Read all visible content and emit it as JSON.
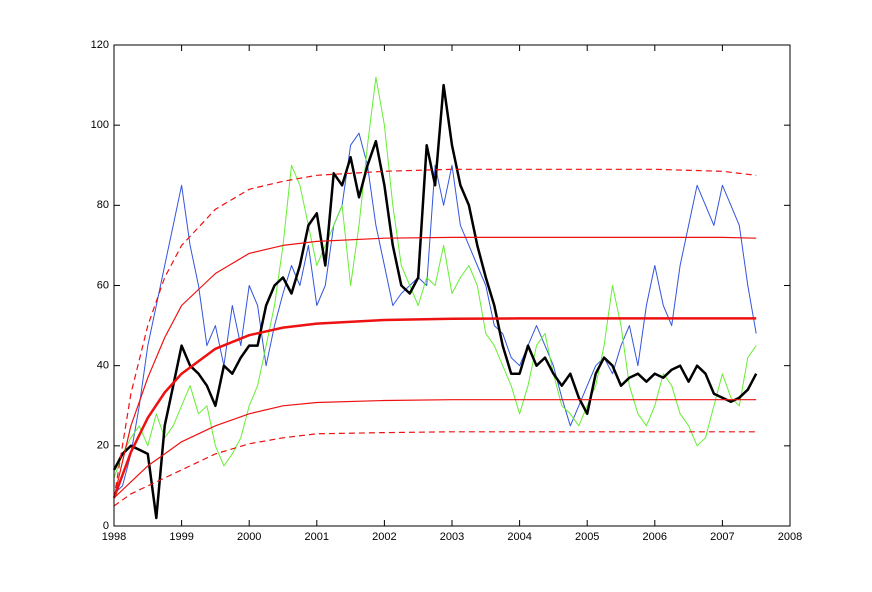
{
  "chart_data": {
    "type": "line",
    "xlim": [
      1998,
      2008
    ],
    "xticks": [
      1998,
      1999,
      2000,
      2001,
      2002,
      2003,
      2004,
      2005,
      2006,
      2007,
      2008
    ],
    "ylim": [
      0,
      120
    ],
    "yticks": [
      0,
      20,
      40,
      60,
      80,
      100,
      120
    ],
    "series": [
      {
        "color": "#3355dd",
        "linewidth": 1,
        "linestyle": "solid",
        "x": [
          1998,
          1998.125,
          1998.25,
          1998.375,
          1998.5,
          1998.625,
          1998.75,
          1998.875,
          1999,
          1999.125,
          1999.25,
          1999.375,
          1999.5,
          1999.625,
          1999.75,
          1999.875,
          2000,
          2000.125,
          2000.25,
          2000.375,
          2000.5,
          2000.625,
          2000.75,
          2000.875,
          2001,
          2001.125,
          2001.25,
          2001.375,
          2001.5,
          2001.625,
          2001.75,
          2001.875,
          2002,
          2002.125,
          2002.25,
          2002.375,
          2002.5,
          2002.625,
          2002.75,
          2002.875,
          2003,
          2003.125,
          2003.25,
          2003.375,
          2003.5,
          2003.625,
          2003.75,
          2003.875,
          2004,
          2004.125,
          2004.25,
          2004.375,
          2004.5,
          2004.625,
          2004.75,
          2004.875,
          2005,
          2005.125,
          2005.25,
          2005.375,
          2005.5,
          2005.625,
          2005.75,
          2005.875,
          2006,
          2006.125,
          2006.25,
          2006.375,
          2006.5,
          2006.625,
          2006.75,
          2006.875,
          2007,
          2007.125,
          2007.25,
          2007.375,
          2007.5
        ],
        "values": [
          8,
          10,
          18,
          30,
          45,
          55,
          65,
          75,
          85,
          70,
          60,
          45,
          50,
          40,
          55,
          45,
          60,
          55,
          40,
          50,
          58,
          65,
          60,
          70,
          55,
          60,
          75,
          80,
          95,
          98,
          90,
          75,
          65,
          55,
          58,
          60,
          62,
          60,
          90,
          80,
          90,
          75,
          70,
          65,
          60,
          50,
          48,
          42,
          40,
          45,
          50,
          45,
          40,
          32,
          25,
          30,
          35,
          40,
          42,
          38,
          45,
          50,
          40,
          55,
          65,
          55,
          50,
          65,
          75,
          85,
          80,
          75,
          85,
          80,
          75,
          60,
          48
        ]
      },
      {
        "color": "#66ee33",
        "linewidth": 1,
        "linestyle": "solid",
        "x": [
          1998,
          1998.125,
          1998.25,
          1998.375,
          1998.5,
          1998.625,
          1998.75,
          1998.875,
          1999,
          1999.125,
          1999.25,
          1999.375,
          1999.5,
          1999.625,
          1999.75,
          1999.875,
          2000,
          2000.125,
          2000.25,
          2000.375,
          2000.5,
          2000.625,
          2000.75,
          2000.875,
          2001,
          2001.125,
          2001.25,
          2001.375,
          2001.5,
          2001.625,
          2001.75,
          2001.875,
          2002,
          2002.125,
          2002.25,
          2002.375,
          2002.5,
          2002.625,
          2002.75,
          2002.875,
          2003,
          2003.125,
          2003.25,
          2003.375,
          2003.5,
          2003.625,
          2003.75,
          2003.875,
          2004,
          2004.125,
          2004.25,
          2004.375,
          2004.5,
          2004.625,
          2004.75,
          2004.875,
          2005,
          2005.125,
          2005.25,
          2005.375,
          2005.5,
          2005.625,
          2005.75,
          2005.875,
          2006,
          2006.125,
          2006.25,
          2006.375,
          2006.5,
          2006.625,
          2006.75,
          2006.875,
          2007,
          2007.125,
          2007.25,
          2007.375,
          2007.5
        ],
        "values": [
          12,
          18,
          22,
          25,
          20,
          28,
          22,
          25,
          30,
          35,
          28,
          30,
          20,
          15,
          18,
          22,
          30,
          35,
          45,
          55,
          70,
          90,
          85,
          75,
          65,
          70,
          75,
          80,
          60,
          75,
          95,
          112,
          100,
          80,
          65,
          60,
          55,
          62,
          60,
          70,
          58,
          62,
          65,
          60,
          48,
          45,
          40,
          35,
          28,
          35,
          45,
          48,
          38,
          30,
          28,
          25,
          30,
          35,
          45,
          60,
          50,
          35,
          28,
          25,
          30,
          38,
          35,
          28,
          25,
          20,
          22,
          30,
          38,
          32,
          30,
          42,
          45
        ]
      },
      {
        "color": "#000000",
        "linewidth": 2.5,
        "linestyle": "solid",
        "x": [
          1998,
          1998.125,
          1998.25,
          1998.375,
          1998.5,
          1998.625,
          1998.75,
          1998.875,
          1999,
          1999.125,
          1999.25,
          1999.375,
          1999.5,
          1999.625,
          1999.75,
          1999.875,
          2000,
          2000.125,
          2000.25,
          2000.375,
          2000.5,
          2000.625,
          2000.75,
          2000.875,
          2001,
          2001.125,
          2001.25,
          2001.375,
          2001.5,
          2001.625,
          2001.75,
          2001.875,
          2002,
          2002.125,
          2002.25,
          2002.375,
          2002.5,
          2002.625,
          2002.75,
          2002.875,
          2003,
          2003.125,
          2003.25,
          2003.375,
          2003.5,
          2003.625,
          2003.75,
          2003.875,
          2004,
          2004.125,
          2004.25,
          2004.375,
          2004.5,
          2004.625,
          2004.75,
          2004.875,
          2005,
          2005.125,
          2005.25,
          2005.375,
          2005.5,
          2005.625,
          2005.75,
          2005.875,
          2006,
          2006.125,
          2006.25,
          2006.375,
          2006.5,
          2006.625,
          2006.75,
          2006.875,
          2007,
          2007.125,
          2007.25,
          2007.375,
          2007.5
        ],
        "values": [
          14,
          18,
          20,
          19,
          18,
          2,
          25,
          35,
          45,
          40,
          38,
          35,
          30,
          40,
          38,
          42,
          45,
          45,
          55,
          60,
          62,
          58,
          65,
          75,
          78,
          65,
          88,
          85,
          92,
          82,
          90,
          96,
          85,
          70,
          60,
          58,
          62,
          95,
          85,
          110,
          95,
          85,
          80,
          70,
          62,
          55,
          45,
          38,
          38,
          45,
          40,
          42,
          38,
          35,
          38,
          32,
          28,
          38,
          42,
          40,
          35,
          37,
          38,
          36,
          38,
          37,
          39,
          40,
          36,
          40,
          38,
          33,
          32,
          31,
          32,
          34,
          38
        ]
      },
      {
        "color": "#ee1111",
        "linewidth": 2.5,
        "linestyle": "solid",
        "x": [
          1998,
          1998.25,
          1998.5,
          1998.75,
          1999,
          1999.5,
          2000,
          2000.5,
          2001,
          2002,
          2003,
          2004,
          2005,
          2006,
          2007,
          2007.5
        ],
        "values": [
          7,
          18.4,
          27,
          33.3,
          38,
          44.2,
          47.6,
          49.5,
          50.5,
          51.4,
          51.7,
          51.8,
          51.8,
          51.8,
          51.8,
          51.8
        ]
      },
      {
        "color": "#ee1111",
        "linewidth": 1.2,
        "linestyle": "solid",
        "x": [
          1998,
          1998.25,
          1998.5,
          1998.75,
          1999,
          1999.5,
          2000,
          2000.5,
          2001,
          2002,
          2003,
          2004,
          2005,
          2006,
          2007,
          2007.5
        ],
        "values": [
          7,
          25,
          37,
          47,
          55,
          63,
          68,
          70,
          71,
          71.8,
          72,
          72,
          72,
          72,
          72,
          71.8
        ]
      },
      {
        "color": "#ee1111",
        "linewidth": 1.2,
        "linestyle": "solid",
        "x": [
          1998,
          1998.25,
          1998.5,
          1998.75,
          1999,
          1999.5,
          2000,
          2000.5,
          2001,
          2002,
          2003,
          2004,
          2005,
          2006,
          2007,
          2007.5
        ],
        "values": [
          7,
          11,
          15,
          18,
          21,
          25,
          28,
          30,
          30.8,
          31.3,
          31.5,
          31.5,
          31.5,
          31.5,
          31.5,
          31.5
        ]
      },
      {
        "color": "#ee1111",
        "linewidth": 1.2,
        "linestyle": "dashed",
        "x": [
          1998,
          1998.25,
          1998.5,
          1998.75,
          1999,
          1999.5,
          2000,
          2000.5,
          2001,
          2002,
          2003,
          2004,
          2005,
          2006,
          2007,
          2007.5
        ],
        "values": [
          7,
          33,
          50,
          62,
          70,
          79,
          84,
          86,
          87.5,
          88.5,
          89,
          89,
          89,
          89,
          88.5,
          87.5
        ]
      },
      {
        "color": "#ee1111",
        "linewidth": 1.2,
        "linestyle": "dashed",
        "x": [
          1998,
          1998.25,
          1998.5,
          1998.75,
          1999,
          1999.5,
          2000,
          2000.5,
          2001,
          2002,
          2003,
          2004,
          2005,
          2006,
          2007,
          2007.5
        ],
        "values": [
          5,
          8,
          10,
          12,
          14,
          18,
          20.5,
          22,
          23,
          23.3,
          23.5,
          23.5,
          23.5,
          23.5,
          23.5,
          23.5
        ]
      }
    ]
  }
}
